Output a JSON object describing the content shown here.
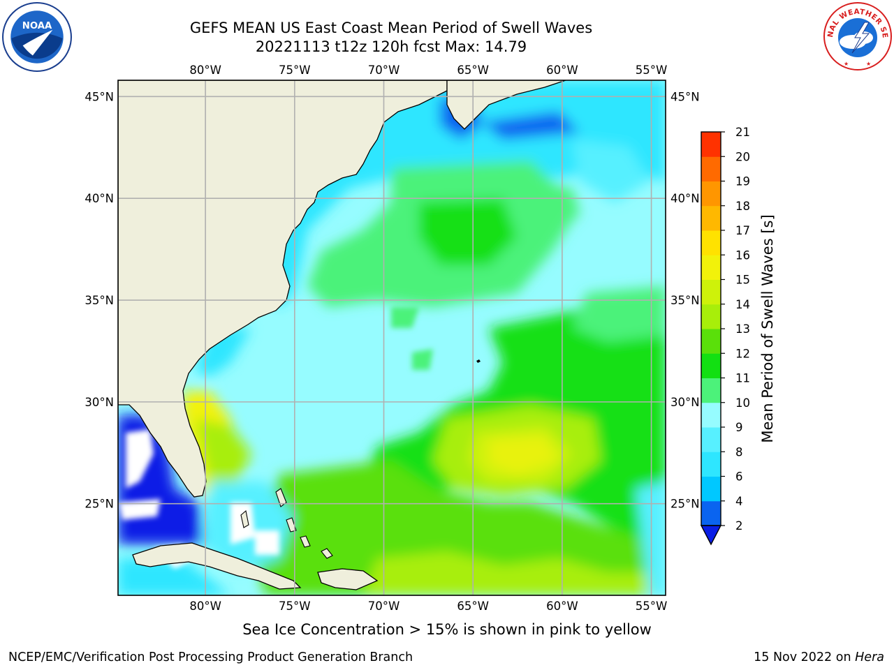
{
  "title_line1": "GEFS MEAN US East Coast Mean Period of Swell Waves",
  "title_line2": "20221113 t12z 120h fcst   Max: 14.79",
  "lon_labels": [
    "80°W",
    "75°W",
    "70°W",
    "65°W",
    "60°W",
    "55°W"
  ],
  "lat_labels": [
    "45°N",
    "40°N",
    "35°N",
    "30°N",
    "25°N"
  ],
  "map": {
    "lon_min": -84.9,
    "lon_max": -54.2,
    "lat_min": 20.5,
    "lat_max": 45.8,
    "lon_ticks": [
      -80,
      -75,
      -70,
      -65,
      -60,
      -55
    ],
    "lat_ticks": [
      45,
      40,
      35,
      30,
      25
    ]
  },
  "colorbar": {
    "label": "Mean Period of Swell Waves [s]",
    "ticks": [
      "2",
      "4",
      "6",
      "8",
      "9",
      "10",
      "11",
      "12",
      "13",
      "14",
      "15",
      "16",
      "17",
      "18",
      "19",
      "20",
      "21"
    ],
    "colors": [
      "#0a64f0",
      "#00c8ff",
      "#2ee6ff",
      "#57f0ff",
      "#96fcff",
      "#4cf27a",
      "#12e012",
      "#5ae00a",
      "#a8ee0a",
      "#cef20a",
      "#f2f20a",
      "#ffe200",
      "#ffb800",
      "#ff9600",
      "#ff6a00",
      "#ff3200",
      "#ff0a00"
    ],
    "extend_color": "#0a1ee6"
  },
  "footer_note": "Sea Ice Concentration > 15% is shown in pink to yellow",
  "credit": "NCEP/EMC/Verification Post Processing Product Generation Branch",
  "stamp_date": "15 Nov 2022 on",
  "stamp_host": "Hera",
  "logos": {
    "noaa": "NOAA",
    "nws": "NATIONAL WEATHER SERVICE"
  }
}
